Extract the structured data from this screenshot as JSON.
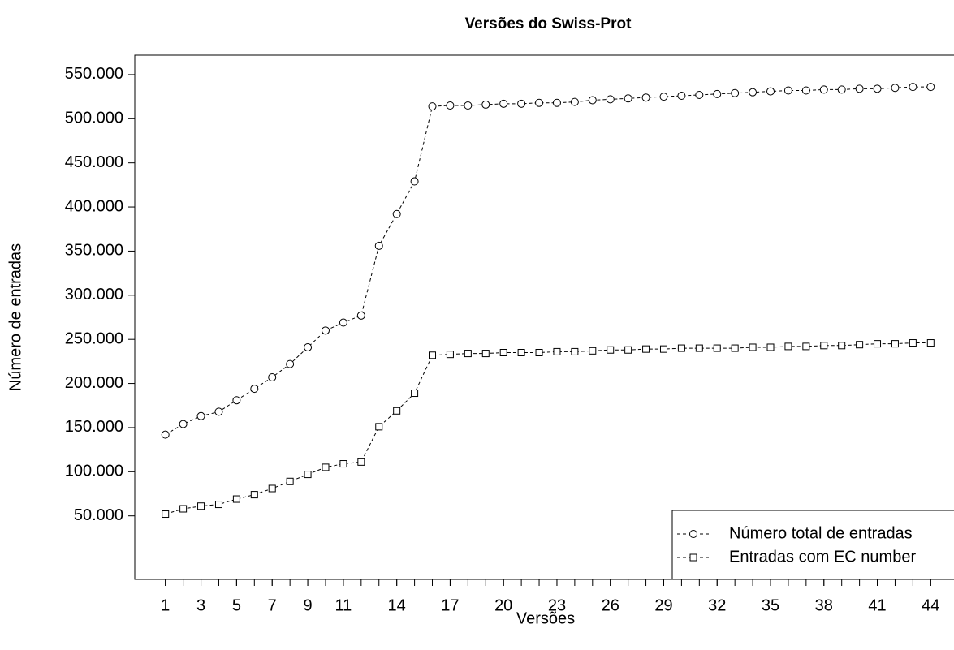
{
  "chart_data": {
    "type": "line",
    "title": "Versões do Swiss-Prot",
    "x_label": "Versões",
    "y_label": "Número de entradas",
    "x": [
      1,
      2,
      3,
      4,
      5,
      6,
      7,
      8,
      9,
      10,
      11,
      12,
      13,
      14,
      15,
      16,
      17,
      18,
      19,
      20,
      21,
      22,
      23,
      24,
      25,
      26,
      27,
      28,
      29,
      30,
      31,
      32,
      33,
      34,
      35,
      36,
      37,
      38,
      39,
      40,
      41,
      42,
      43,
      44
    ],
    "series": [
      {
        "name": "Número total de entradas",
        "color": "#000000",
        "marker": "circle",
        "values": [
          142000,
          154000,
          163000,
          168000,
          181000,
          194000,
          207000,
          222000,
          241000,
          260000,
          269000,
          277000,
          356000,
          392000,
          429000,
          514000,
          515000,
          515000,
          516000,
          517000,
          517000,
          518000,
          518000,
          519000,
          521000,
          522000,
          523000,
          524000,
          525000,
          526000,
          527000,
          528000,
          529000,
          530000,
          531000,
          532000,
          532000,
          533000,
          533000,
          534000,
          534000,
          535000,
          536000,
          536000
        ]
      },
      {
        "name": "Entradas com EC number",
        "color": "#000000",
        "marker": "square",
        "values": [
          52000,
          58000,
          61000,
          63000,
          69000,
          74000,
          81000,
          89000,
          97000,
          105000,
          109000,
          111000,
          151000,
          169000,
          189000,
          232000,
          233000,
          234000,
          234000,
          235000,
          235000,
          235000,
          236000,
          236000,
          237000,
          238000,
          238000,
          239000,
          239000,
          240000,
          240000,
          240000,
          240000,
          241000,
          241000,
          242000,
          242000,
          243000,
          243000,
          244000,
          245000,
          245000,
          246000,
          246000
        ]
      }
    ],
    "xlim": [
      -0.72,
      45.72
    ],
    "xticks": [
      1,
      3,
      5,
      7,
      9,
      11,
      14,
      17,
      20,
      23,
      26,
      29,
      32,
      35,
      38,
      41,
      44
    ],
    "ylim": [
      -22000,
      572000
    ],
    "yticks": [
      {
        "value": 50000,
        "label": "50.000"
      },
      {
        "value": 100000,
        "label": "100.000"
      },
      {
        "value": 150000,
        "label": "150.000"
      },
      {
        "value": 200000,
        "label": "200.000"
      },
      {
        "value": 250000,
        "label": "250.000"
      },
      {
        "value": 300000,
        "label": "300.000"
      },
      {
        "value": 350000,
        "label": "350.000"
      },
      {
        "value": 400000,
        "label": "400.000"
      },
      {
        "value": 450000,
        "label": "450.000"
      },
      {
        "value": 500000,
        "label": "500.000"
      },
      {
        "value": 550000,
        "label": "550.000"
      }
    ],
    "legend": "bottom-right",
    "line_style": "dashed"
  }
}
